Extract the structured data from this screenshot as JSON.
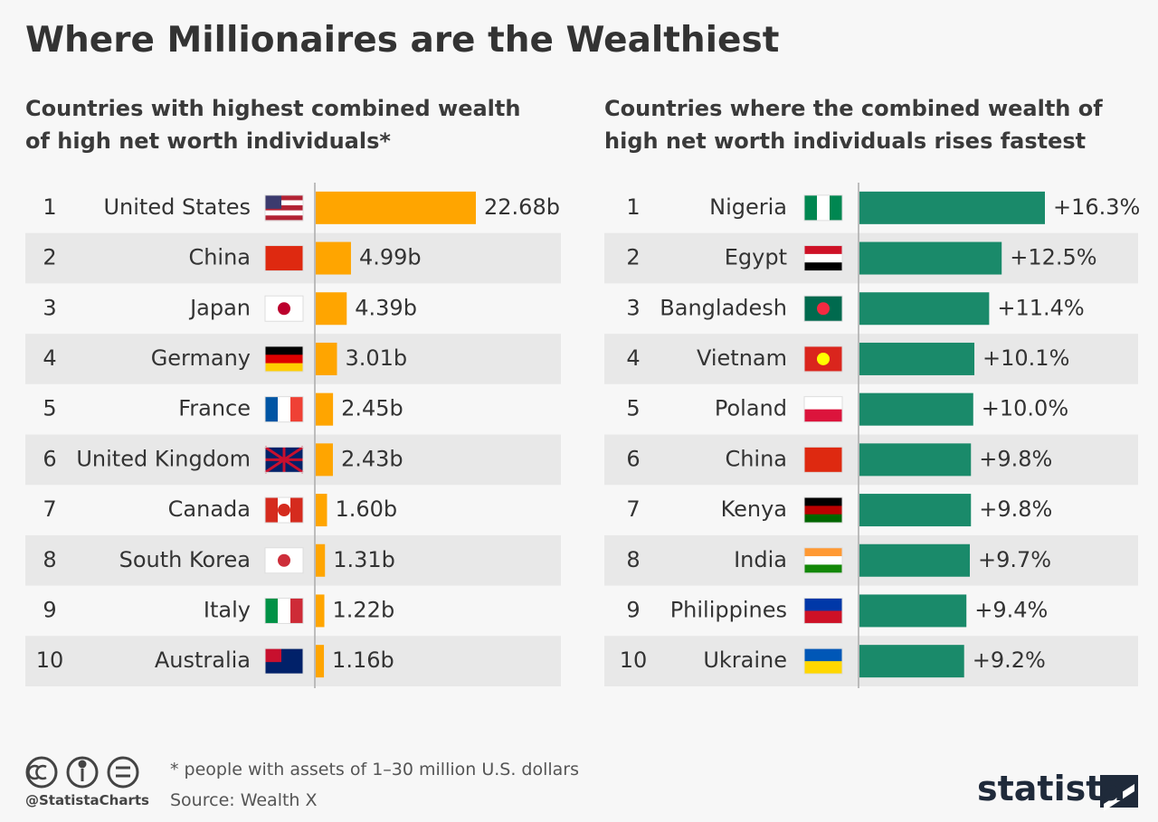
{
  "title": "Where Millionaires are the Wealthiest",
  "chart_data": [
    {
      "type": "bar",
      "orientation": "horizontal",
      "subtitle": "Countries with highest combined wealth of high net worth individuals*",
      "ranks": [
        "1",
        "2",
        "3",
        "4",
        "5",
        "6",
        "7",
        "8",
        "9",
        "10"
      ],
      "categories": [
        "United States",
        "China",
        "Japan",
        "Germany",
        "France",
        "United Kingdom",
        "Canada",
        "South Korea",
        "Italy",
        "Australia"
      ],
      "values": [
        22.68,
        4.99,
        4.39,
        3.01,
        2.45,
        2.43,
        1.6,
        1.31,
        1.22,
        1.16
      ],
      "value_labels": [
        "22.68b",
        "4.99b",
        "4.39b",
        "3.01b",
        "2.45b",
        "2.43b",
        "1.60b",
        "1.31b",
        "1.22b",
        "1.16b"
      ],
      "color": "#ffa500"
    },
    {
      "type": "bar",
      "orientation": "horizontal",
      "subtitle": "Countries where the combined wealth of high net worth individuals rises fastest",
      "ranks": [
        "1",
        "2",
        "3",
        "4",
        "5",
        "6",
        "7",
        "8",
        "9",
        "10"
      ],
      "categories": [
        "Nigeria",
        "Egypt",
        "Bangladesh",
        "Vietnam",
        "Poland",
        "China",
        "Kenya",
        "India",
        "Philippines",
        "Ukraine"
      ],
      "values": [
        16.3,
        12.5,
        11.4,
        10.1,
        10.0,
        9.8,
        9.8,
        9.7,
        9.4,
        9.2
      ],
      "value_labels": [
        "+16.3%",
        "+12.5%",
        "+11.4%",
        "+10.1%",
        "+10.0%",
        "+9.8%",
        "+9.8%",
        "+9.7%",
        "+9.4%",
        "+9.2%"
      ],
      "color": "#1a8a6a"
    }
  ],
  "footnote": "* people with assets of 1–30 million U.S. dollars",
  "handle": "@StatistaCharts",
  "source": "Source: Wealth X",
  "logo": "statista"
}
